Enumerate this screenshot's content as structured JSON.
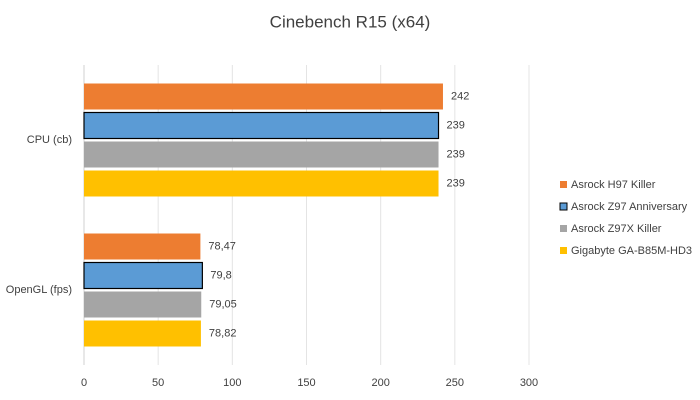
{
  "chart_data": {
    "type": "barh",
    "title": "Cinebench R15 (x64)",
    "categories": [
      "CPU (cb)",
      "OpenGL (fps)"
    ],
    "series": [
      {
        "name": "Asrock H97 Killer",
        "color": "#ED7D31",
        "values": [
          242,
          78.47
        ],
        "value_labels": [
          "242",
          "78,47"
        ]
      },
      {
        "name": "Asrock Z97 Anniversary",
        "color": "#5B9BD5",
        "edgecolor": "#000000",
        "values": [
          239,
          79.8
        ],
        "value_labels": [
          "239",
          "79,8"
        ]
      },
      {
        "name": "Asrock Z97X Killer",
        "color": "#A5A5A5",
        "values": [
          239,
          79.05
        ],
        "value_labels": [
          "239",
          "79,05"
        ]
      },
      {
        "name": "Gigabyte GA-B85M-HD3",
        "color": "#FFC000",
        "values": [
          239,
          78.82
        ],
        "value_labels": [
          "239",
          "78,82"
        ]
      }
    ],
    "xlim": [
      0,
      300
    ],
    "xticks": [
      0,
      50,
      100,
      150,
      200,
      250,
      300
    ],
    "grid": true,
    "legend": "right"
  }
}
